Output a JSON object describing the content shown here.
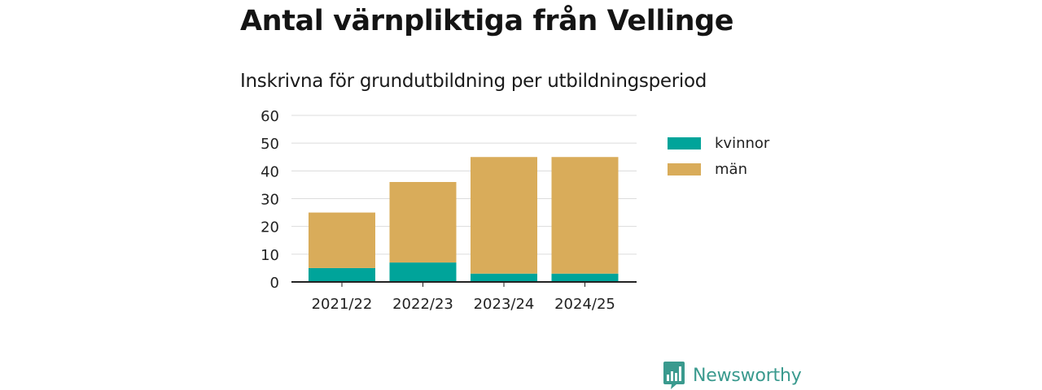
{
  "header": {
    "title": "Antal värnpliktiga från Vellinge",
    "subtitle": "Inskrivna för grundutbildning per utbildningsperiod"
  },
  "brand": {
    "name": "Newsworthy",
    "icon": "newsworthy-bar-chart-icon",
    "color": "#3a9a8e"
  },
  "chart_data": {
    "type": "bar",
    "stacked": true,
    "title": "Antal värnpliktiga från Vellinge",
    "subtitle": "Inskrivna för grundutbildning per utbildningsperiod",
    "xlabel": "",
    "ylabel": "",
    "categories": [
      "2021/22",
      "2022/23",
      "2023/24",
      "2024/25"
    ],
    "series": [
      {
        "name": "kvinnor",
        "color": "#00a49a",
        "values": [
          5,
          7,
          3,
          3
        ]
      },
      {
        "name": "män",
        "color": "#d9ac5a",
        "values": [
          20,
          29,
          42,
          42
        ]
      }
    ],
    "ylim": [
      0,
      60
    ],
    "yticks": [
      0,
      10,
      20,
      30,
      40,
      50,
      60
    ],
    "grid": true,
    "legend": "right"
  }
}
